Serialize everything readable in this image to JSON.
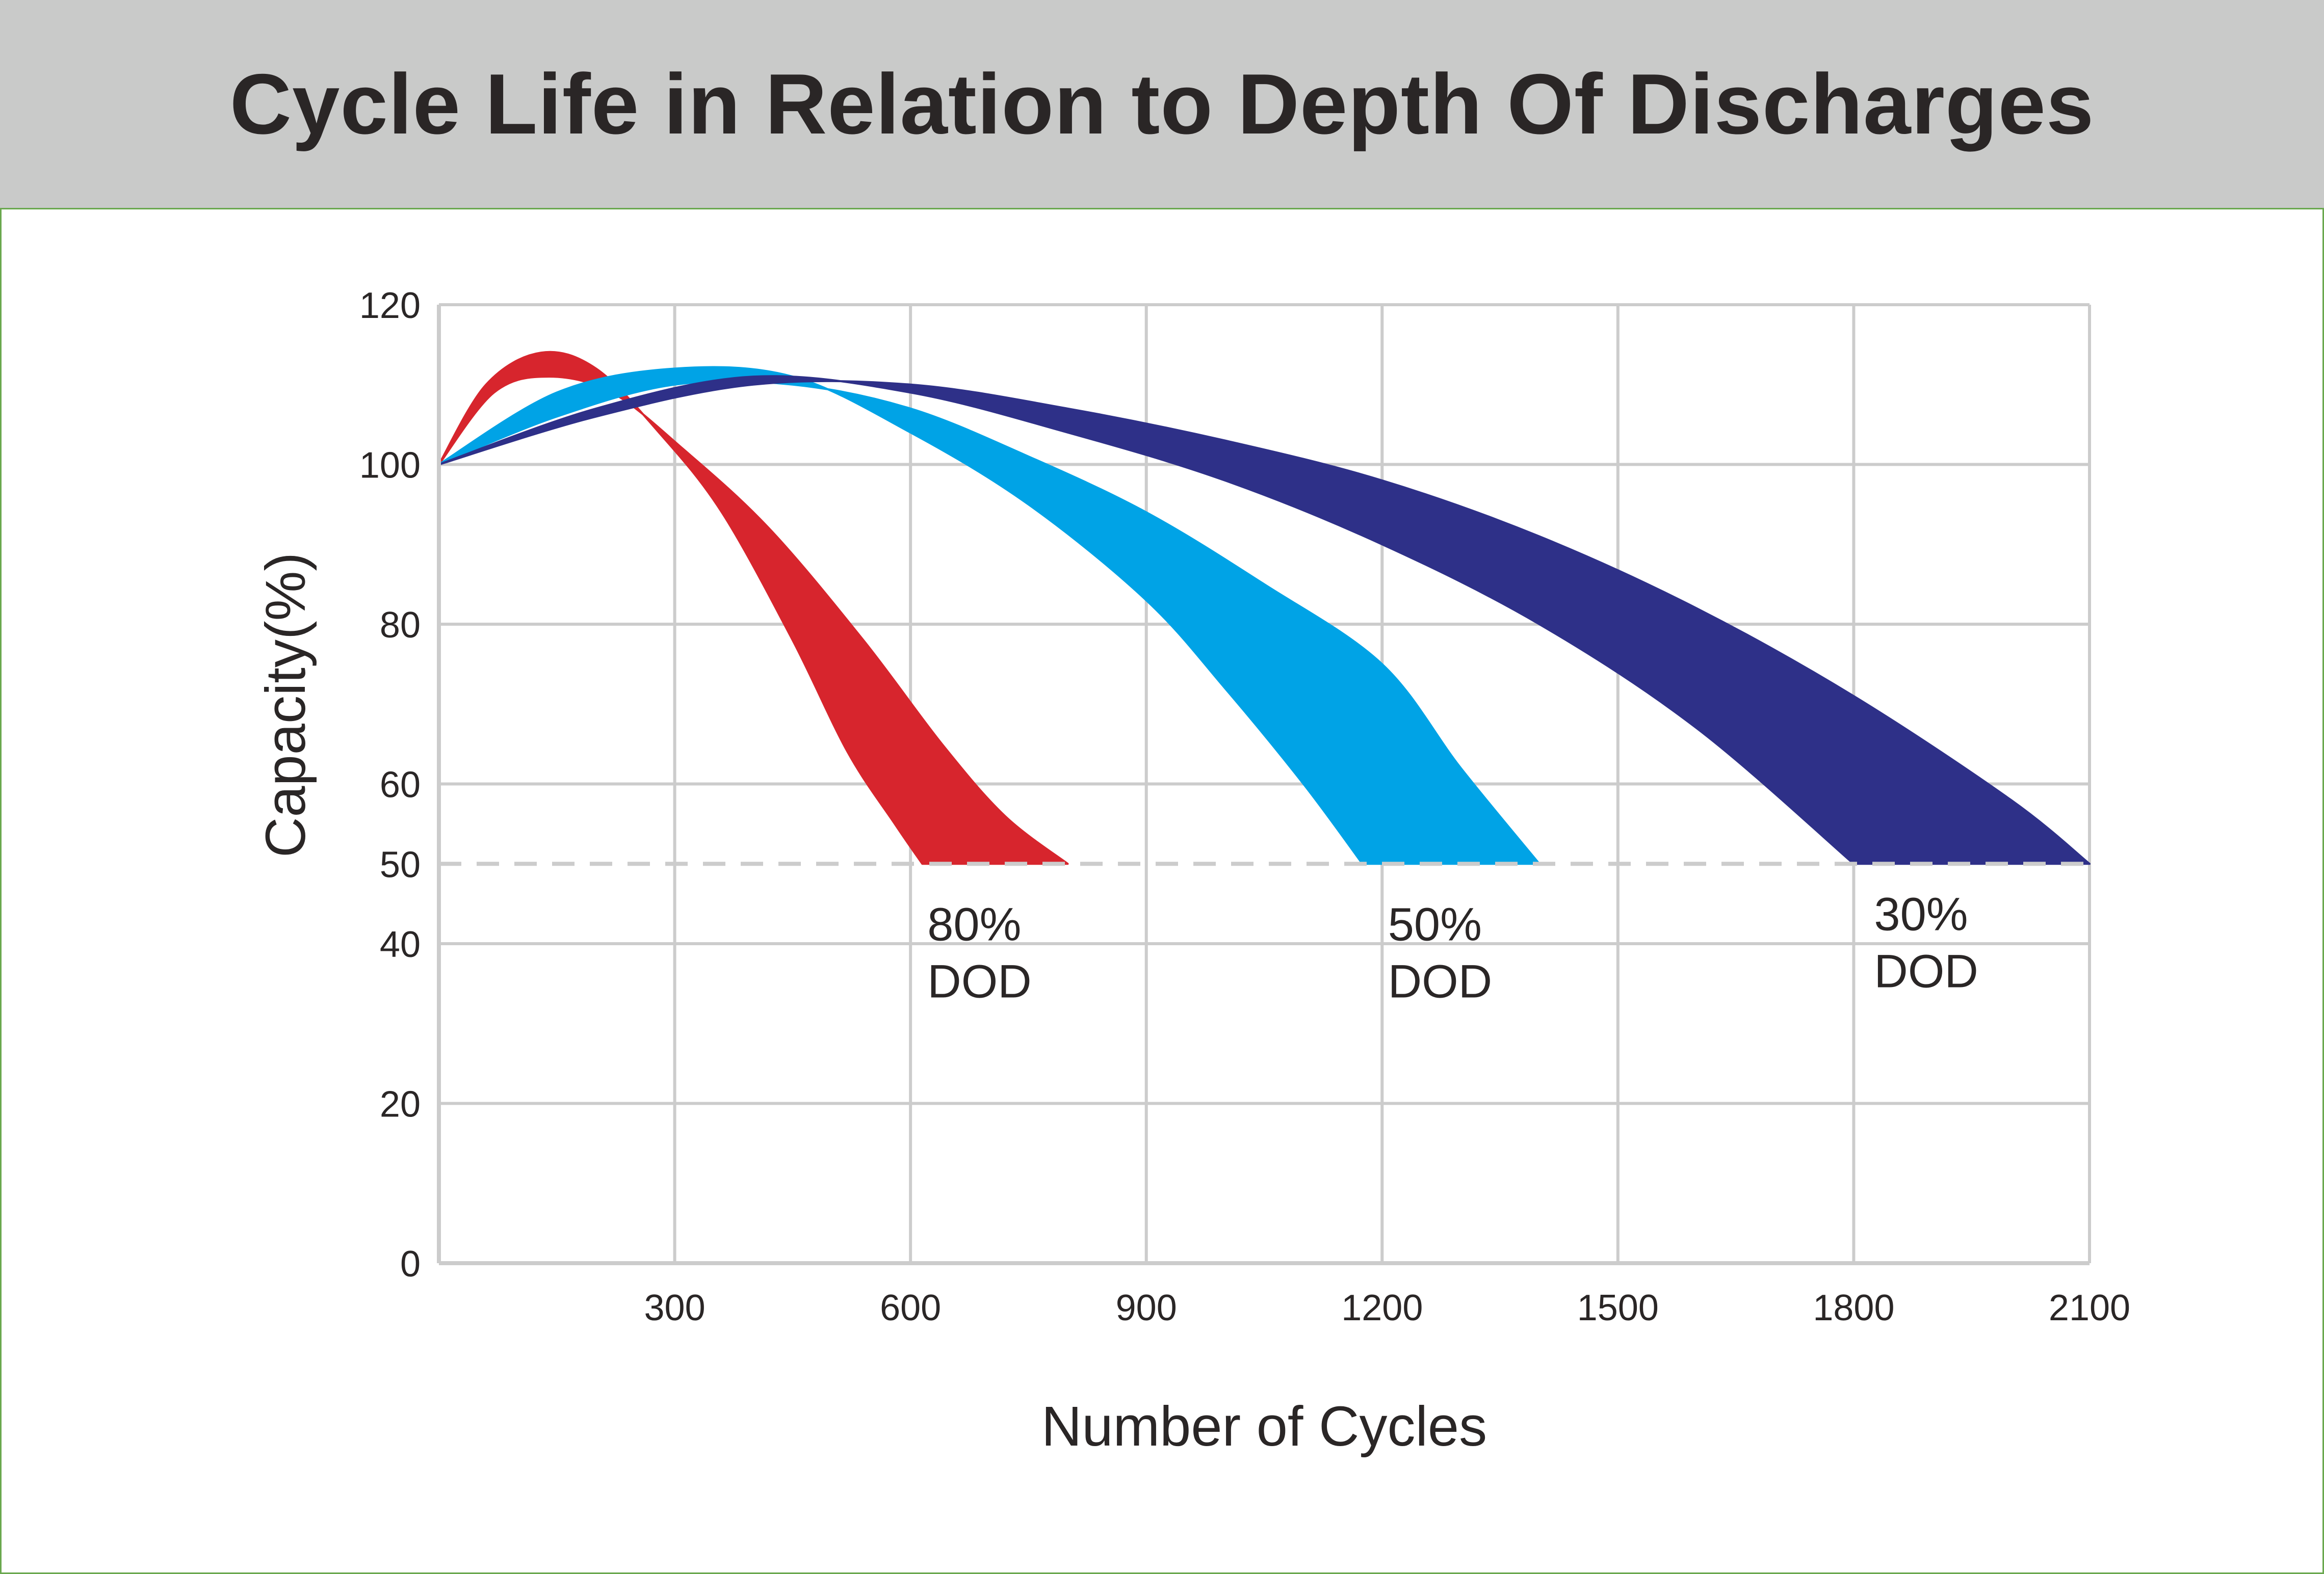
{
  "header": {
    "title": "Cycle Life in Relation to Depth Of Discharges"
  },
  "colors": {
    "header_bg": "#c9cac9",
    "title_text": "#2a2626",
    "border": "#6aa84f",
    "grid": "#cccccc",
    "dashed_line": "#cccccc",
    "dod_80": "#d7252d",
    "dod_50": "#00a3e6",
    "dod_30": "#2e3088"
  },
  "chart_data": {
    "type": "area",
    "xlabel": "Number of Cycles",
    "ylabel": "Capacity(%)",
    "xlim": [
      0,
      2100
    ],
    "ylim": [
      0,
      120
    ],
    "x_ticks": [
      "300",
      "600",
      "900",
      "1200",
      "1500",
      "1800",
      "2100"
    ],
    "y_ticks": [
      "0",
      "20",
      "40",
      "50",
      "60",
      "80",
      "100",
      "120"
    ],
    "grid": true,
    "reference_line": {
      "y": 50,
      "style": "dashed"
    },
    "series": [
      {
        "name_lines": [
          "80%",
          "DOD"
        ],
        "color_key": "dod_80",
        "lower_bound": {
          "x": [
            0,
            60,
            130,
            200,
            280,
            360,
            450,
            520,
            580,
            615
          ],
          "y": [
            100,
            110,
            114,
            112,
            104,
            94,
            78,
            64,
            55,
            50
          ]
        },
        "upper_bound": {
          "x": [
            0,
            70,
            140,
            220,
            310,
            420,
            540,
            640,
            720,
            800
          ],
          "y": [
            100,
            109,
            111,
            109,
            102,
            92,
            78,
            65,
            56,
            50
          ]
        }
      },
      {
        "name_lines": [
          "50%",
          "DOD"
        ],
        "color_key": "dod_50",
        "lower_bound": {
          "x": [
            0,
            150,
            300,
            450,
            600,
            750,
            900,
            1000,
            1100,
            1175
          ],
          "y": [
            100,
            109,
            112,
            111,
            104,
            95,
            83,
            72,
            60,
            50
          ]
        },
        "upper_bound": {
          "x": [
            0,
            150,
            300,
            450,
            600,
            750,
            900,
            1050,
            1200,
            1300,
            1400
          ],
          "y": [
            100,
            106,
            110,
            110,
            107,
            101,
            94,
            85,
            75,
            62,
            50
          ]
        }
      },
      {
        "name_lines": [
          "30%",
          "DOD"
        ],
        "color_key": "dod_30",
        "lower_bound": {
          "x": [
            0,
            200,
            400,
            600,
            800,
            1000,
            1200,
            1400,
            1600,
            1800
          ],
          "y": [
            100,
            107,
            111,
            109,
            104,
            98,
            90,
            80,
            67,
            50
          ]
        },
        "upper_bound": {
          "x": [
            0,
            200,
            400,
            600,
            800,
            1000,
            1200,
            1400,
            1600,
            1800,
            2000,
            2100
          ],
          "y": [
            100,
            106,
            110,
            110,
            107,
            103,
            98,
            91,
            82,
            71,
            58,
            50
          ]
        }
      }
    ]
  }
}
